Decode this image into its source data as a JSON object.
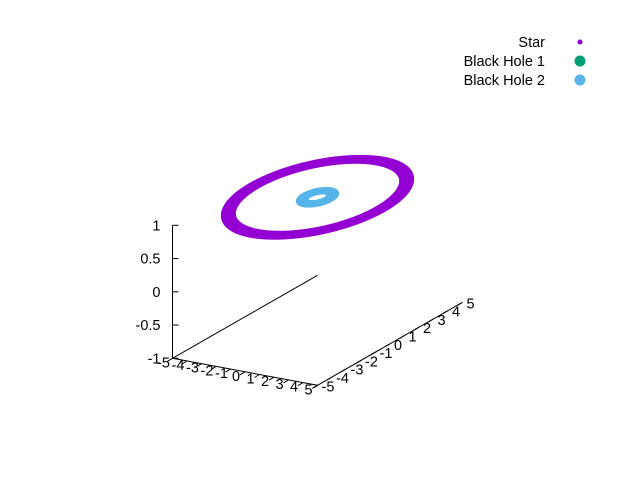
{
  "chart_data": {
    "type": "scatter",
    "projection": "3d",
    "title": "",
    "xlabel": "",
    "ylabel": "",
    "zlabel": "",
    "xlim": [
      -5,
      5
    ],
    "ylim": [
      -5,
      5
    ],
    "zlim": [
      -1,
      1
    ],
    "x_ticks": [
      "-5",
      "-4",
      "-3",
      "-2",
      "-1",
      "0",
      "1",
      "2",
      "3",
      "4",
      "5"
    ],
    "y_ticks": [
      "-5",
      "-4",
      "-3",
      "-2",
      "-1",
      "0",
      "1",
      "2",
      "3",
      "4",
      "5"
    ],
    "z_ticks": [
      "1",
      "0.5",
      "0",
      "-0.5",
      "-1"
    ],
    "grid": false,
    "legend": "top-right",
    "series": [
      {
        "name": "Star",
        "color": "#9400d3",
        "marker": "small-filled-circle",
        "shape": "annulus",
        "z": 1,
        "inner_radius": 4.1,
        "outer_radius": 4.6
      },
      {
        "name": "Black Hole 1",
        "color": "#009e73",
        "marker": "filled-circle",
        "shape": "annulus",
        "z": 1,
        "inner_radius": 0.55,
        "outer_radius": 0.95
      },
      {
        "name": "Black Hole 2",
        "color": "#56b4e9",
        "marker": "filled-circle",
        "shape": "annulus",
        "z": 1,
        "inner_radius": 0.55,
        "outer_radius": 0.95
      }
    ]
  }
}
